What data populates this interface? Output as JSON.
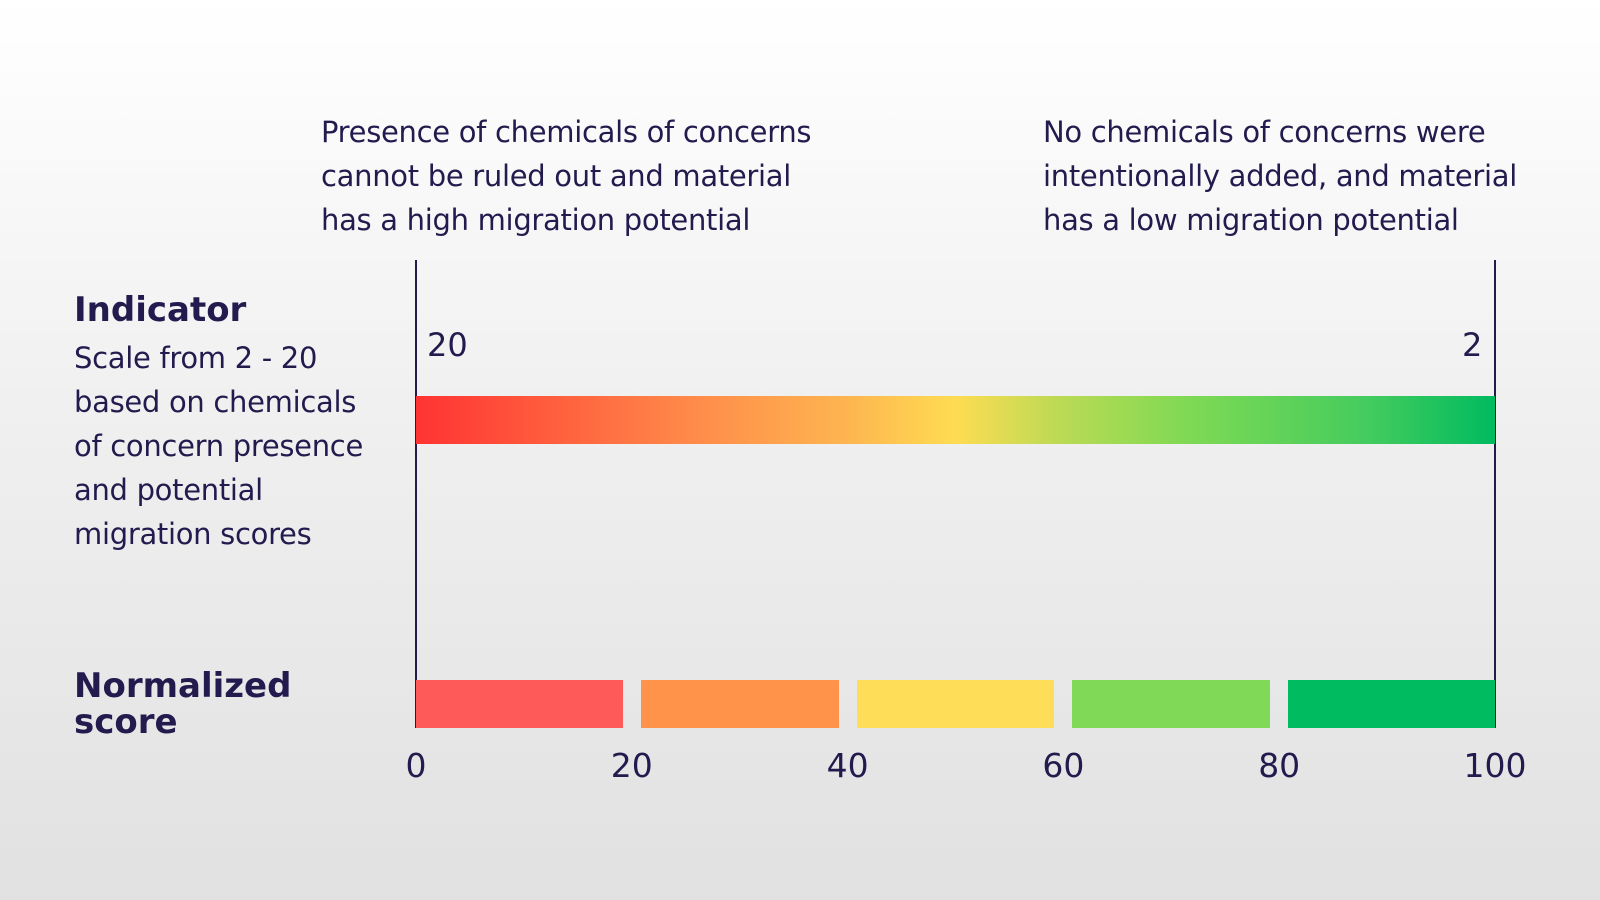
{
  "annotations": {
    "left": "Presence of chemicals of concerns\ncannot be ruled out and material\nhas a high migration potential",
    "right": "No chemicals of concerns were\nintentionally added, and material\nhas a low migration potential"
  },
  "indicator": {
    "title": "Indicator",
    "description": "Scale from 2 - 20\nbased on chemicals\nof concern presence\nand potential\nmigration scores",
    "left_value": "20",
    "right_value": "2"
  },
  "normalized": {
    "title": "Normalized\nscore",
    "segments": [
      {
        "from": 0,
        "to": 20,
        "color": "#ff5a5a"
      },
      {
        "from": 20,
        "to": 40,
        "color": "#ff934a"
      },
      {
        "from": 40,
        "to": 60,
        "color": "#fedd58"
      },
      {
        "from": 60,
        "to": 80,
        "color": "#80da57"
      },
      {
        "from": 80,
        "to": 100,
        "color": "#00bb5f"
      }
    ],
    "ticks": [
      "0",
      "20",
      "40",
      "60",
      "80",
      "100"
    ]
  }
}
